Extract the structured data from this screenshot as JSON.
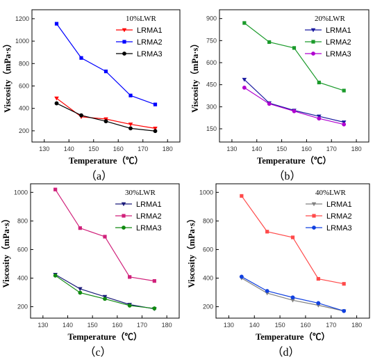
{
  "chart_data": [
    {
      "panel_label": "（a）",
      "type": "line",
      "title": "10%LWR",
      "xlabel": "Temperature（℃）",
      "ylabel": "Viscosity（mPa·s）",
      "xlim": [
        125,
        185
      ],
      "ylim": [
        100,
        1280
      ],
      "xticks": [
        130,
        140,
        150,
        160,
        170,
        180
      ],
      "yticks": [
        200,
        400,
        600,
        800,
        1000,
        1200
      ],
      "x": [
        135,
        145,
        155,
        165,
        175
      ],
      "legend_position": "top-right",
      "series": [
        {
          "name": "LRMA1",
          "color": "#ff0000",
          "marker": "triangle-down",
          "values": [
            490,
            325,
            305,
            258,
            222
          ]
        },
        {
          "name": "LRMA2",
          "color": "#0000ff",
          "marker": "square",
          "values": [
            1155,
            850,
            730,
            515,
            435
          ]
        },
        {
          "name": "LRMA3",
          "color": "#000000",
          "marker": "circle",
          "values": [
            445,
            338,
            285,
            222,
            198
          ]
        }
      ]
    },
    {
      "panel_label": "（b）",
      "type": "line",
      "title": "20%LWR",
      "xlabel": "Temperature（℃）",
      "ylabel": "Viscosity（mPa·s）",
      "xlim": [
        125,
        185
      ],
      "ylim": [
        60,
        960
      ],
      "xticks": [
        130,
        140,
        150,
        160,
        170,
        180
      ],
      "yticks": [
        150,
        300,
        450,
        600,
        750,
        900
      ],
      "x": [
        135,
        145,
        155,
        165,
        175
      ],
      "legend_position": "top-right",
      "series": [
        {
          "name": "LRMA1",
          "color": "#1a1aa0",
          "marker": "triangle-down",
          "values": [
            485,
            325,
            275,
            235,
            195
          ]
        },
        {
          "name": "LRMA2",
          "color": "#1a9a2a",
          "marker": "square",
          "values": [
            870,
            740,
            700,
            465,
            410
          ]
        },
        {
          "name": "LRMA3",
          "color": "#b000d0",
          "marker": "circle",
          "values": [
            430,
            320,
            270,
            220,
            180
          ]
        }
      ]
    },
    {
      "panel_label": "（c）",
      "type": "line",
      "title": "30%LWR",
      "xlabel": "Temperature（℃）",
      "ylabel": "Viscosity（mPa·s）",
      "xlim": [
        125,
        185
      ],
      "ylim": [
        120,
        1060
      ],
      "xticks": [
        130,
        140,
        150,
        160,
        170,
        180
      ],
      "yticks": [
        200,
        400,
        600,
        800,
        1000
      ],
      "x": [
        135,
        145,
        155,
        165,
        175
      ],
      "legend_position": "top-right",
      "series": [
        {
          "name": "LRMA1",
          "color": "#1a1a7a",
          "marker": "triangle-down",
          "values": [
            425,
            325,
            270,
            215,
            185
          ]
        },
        {
          "name": "LRMA2",
          "color": "#d0207a",
          "marker": "square",
          "values": [
            1020,
            750,
            690,
            408,
            380
          ]
        },
        {
          "name": "LRMA3",
          "color": "#108a10",
          "marker": "circle",
          "values": [
            418,
            298,
            255,
            208,
            188
          ]
        }
      ]
    },
    {
      "panel_label": "（d）",
      "type": "line",
      "title": "40%LWR",
      "xlabel": "Temperature（℃）",
      "ylabel": "Viscosity（mPa·s）",
      "xlim": [
        125,
        185
      ],
      "ylim": [
        120,
        1060
      ],
      "xticks": [
        130,
        140,
        150,
        160,
        170,
        180
      ],
      "yticks": [
        200,
        400,
        600,
        800,
        1000
      ],
      "x": [
        135,
        145,
        155,
        165,
        175
      ],
      "legend_position": "top-right",
      "series": [
        {
          "name": "LRMA1",
          "color": "#808080",
          "marker": "triangle-down",
          "values": [
            400,
            295,
            245,
            210,
            170
          ]
        },
        {
          "name": "LRMA2",
          "color": "#ff4a4a",
          "marker": "square",
          "values": [
            975,
            725,
            685,
            395,
            360
          ]
        },
        {
          "name": "LRMA3",
          "color": "#1040e0",
          "marker": "circle",
          "values": [
            410,
            310,
            265,
            225,
            170
          ]
        }
      ]
    }
  ]
}
